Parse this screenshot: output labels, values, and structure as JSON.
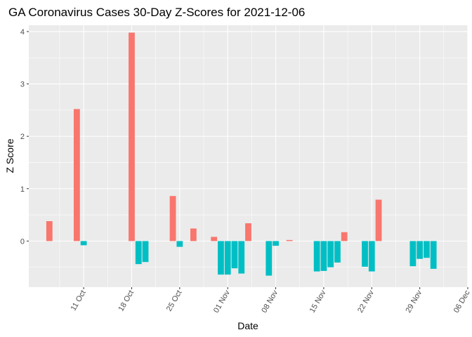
{
  "chart_data": {
    "type": "bar",
    "title": "GA Coronavirus Cases 30-Day Z-Scores for 2021-12-06",
    "xlabel": "Date",
    "ylabel": "Z Score",
    "xlim": [
      "2021-10-03",
      "2021-12-06"
    ],
    "ylim": [
      -0.88,
      4.12
    ],
    "grid": true,
    "legend": "none",
    "colors": {
      "positive": "#F8766D",
      "negative": "#00BFC4",
      "panel": "#EBEBEB"
    },
    "y_ticks": [
      0,
      1,
      2,
      3,
      4
    ],
    "x_ticks": [
      {
        "date": "2021-10-11",
        "label": "11 Oct"
      },
      {
        "date": "2021-10-18",
        "label": "18 Oct"
      },
      {
        "date": "2021-10-25",
        "label": "25 Oct"
      },
      {
        "date": "2021-11-01",
        "label": "01 Nov"
      },
      {
        "date": "2021-11-08",
        "label": "08 Nov"
      },
      {
        "date": "2021-11-15",
        "label": "15 Nov"
      },
      {
        "date": "2021-11-22",
        "label": "22 Nov"
      },
      {
        "date": "2021-11-29",
        "label": "29 Nov"
      },
      {
        "date": "2021-12-06",
        "label": "06 Dec"
      }
    ],
    "dates": [
      "2021-10-06",
      "2021-10-10",
      "2021-10-11",
      "2021-10-18",
      "2021-10-19",
      "2021-10-20",
      "2021-10-24",
      "2021-10-25",
      "2021-10-27",
      "2021-10-30",
      "2021-10-31",
      "2021-11-01",
      "2021-11-02",
      "2021-11-03",
      "2021-11-04",
      "2021-11-07",
      "2021-11-08",
      "2021-11-10",
      "2021-11-14",
      "2021-11-15",
      "2021-11-16",
      "2021-11-17",
      "2021-11-18",
      "2021-11-21",
      "2021-11-22",
      "2021-11-23",
      "2021-11-28",
      "2021-11-29",
      "2021-11-30",
      "2021-12-01",
      "2021-12-02"
    ],
    "values": [
      0.38,
      2.52,
      -0.08,
      3.98,
      -0.44,
      -0.4,
      0.86,
      -0.11,
      0.24,
      0.08,
      -0.64,
      -0.64,
      -0.52,
      -0.62,
      0.34,
      -0.66,
      -0.09,
      0.02,
      -0.58,
      -0.57,
      -0.5,
      -0.41,
      0.17,
      -0.49,
      -0.58,
      0.79,
      -0.48,
      -0.34,
      -0.32,
      -0.53,
      0.0
    ]
  }
}
